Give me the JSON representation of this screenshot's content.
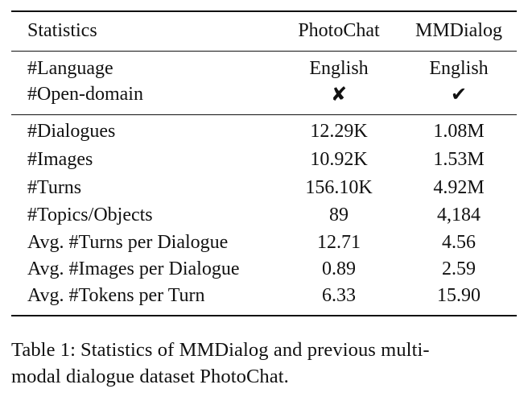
{
  "table": {
    "header": {
      "label": "Statistics",
      "col1": "PhotoChat",
      "col2": "MMDialog"
    },
    "group1": [
      {
        "label": "#Language",
        "col1": "English",
        "col2": "English"
      },
      {
        "label": "#Open-domain",
        "col1": "✘",
        "col2": "✔"
      }
    ],
    "group2": [
      {
        "label": "#Dialogues",
        "col1": "12.29K",
        "col2": "1.08M"
      },
      {
        "label": "#Images",
        "col1": "10.92K",
        "col2": "1.53M"
      },
      {
        "label": "#Turns",
        "col1": "156.10K",
        "col2": "4.92M"
      },
      {
        "label": "#Topics/Objects",
        "col1": "89",
        "col2": "4,184"
      },
      {
        "label": "Avg. #Turns per Dialogue",
        "col1": "12.71",
        "col2": "4.56"
      },
      {
        "label": "Avg. #Images per Dialogue",
        "col1": "0.89",
        "col2": "2.59"
      },
      {
        "label": "Avg. #Tokens per Turn",
        "col1": "6.33",
        "col2": "15.90"
      }
    ]
  },
  "caption": {
    "label": "Table 1:",
    "line1": "Statistics of MMDialog and previous multi-",
    "line2": "modal dialogue dataset PhotoChat."
  }
}
